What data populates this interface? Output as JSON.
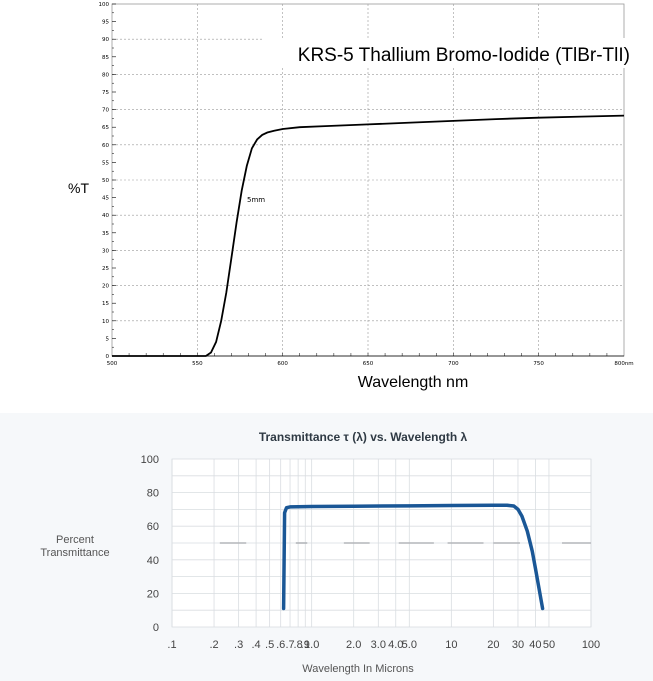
{
  "chart_data": [
    {
      "type": "line",
      "title": "KRS-5 Thallium Bromo-Iodide (TlBr-TlI)",
      "xlabel": "Wavelength nm",
      "ylabel": "%T",
      "xlim": [
        500,
        800
      ],
      "ylim": [
        0,
        100
      ],
      "grid": true,
      "x_ticks": [
        "500",
        "550",
        "600",
        "650",
        "700",
        "750",
        "800nm"
      ],
      "y_ticks": [
        "0",
        "5",
        "10",
        "15",
        "20",
        "25",
        "30",
        "35",
        "40",
        "45",
        "50",
        "55",
        "60",
        "65",
        "70",
        "75",
        "80",
        "85",
        "90",
        "95",
        "100"
      ],
      "series": [
        {
          "name": "5mm",
          "x": [
            500,
            550,
            555,
            558,
            561,
            564,
            567,
            570,
            573,
            576,
            579,
            582,
            585,
            588,
            591,
            595,
            600,
            610,
            625,
            650,
            675,
            700,
            725,
            750,
            775,
            800
          ],
          "y": [
            0,
            0,
            0,
            1,
            4,
            10,
            18,
            28,
            38,
            47,
            54,
            59,
            61.5,
            62.8,
            63.5,
            64,
            64.5,
            65,
            65.3,
            65.8,
            66.3,
            66.8,
            67.3,
            67.7,
            68,
            68.3
          ]
        }
      ]
    },
    {
      "type": "line",
      "title": "Transmittance τ (λ) vs. Wavelength λ",
      "xlabel": "Wavelength In Microns",
      "ylabel": "Percent Transmittance",
      "ylim": [
        0,
        100
      ],
      "xscale": "log",
      "xlim": [
        0.1,
        100
      ],
      "grid": true,
      "x_ticks": [
        ".1",
        ".2",
        ".3",
        ".4",
        ".5",
        ".6",
        ".7",
        ".8",
        ".9",
        "1.0",
        "2.0",
        "3.0",
        "4.0",
        "5.0",
        "10",
        "20",
        "30",
        "40",
        "50",
        "100"
      ],
      "y_ticks": [
        "0",
        "20",
        "40",
        "60",
        "80",
        "100"
      ],
      "series": [
        {
          "x": [
            0.63,
            0.64,
            0.66,
            0.7,
            0.8,
            1,
            2,
            5,
            10,
            20,
            25,
            28,
            30,
            32,
            35,
            38,
            40,
            42,
            45
          ],
          "y": [
            11,
            68,
            71,
            71.5,
            71.6,
            71.7,
            71.9,
            72.1,
            72.3,
            72.5,
            72.5,
            72,
            70,
            66,
            57,
            45,
            35,
            25,
            11
          ]
        }
      ]
    }
  ]
}
